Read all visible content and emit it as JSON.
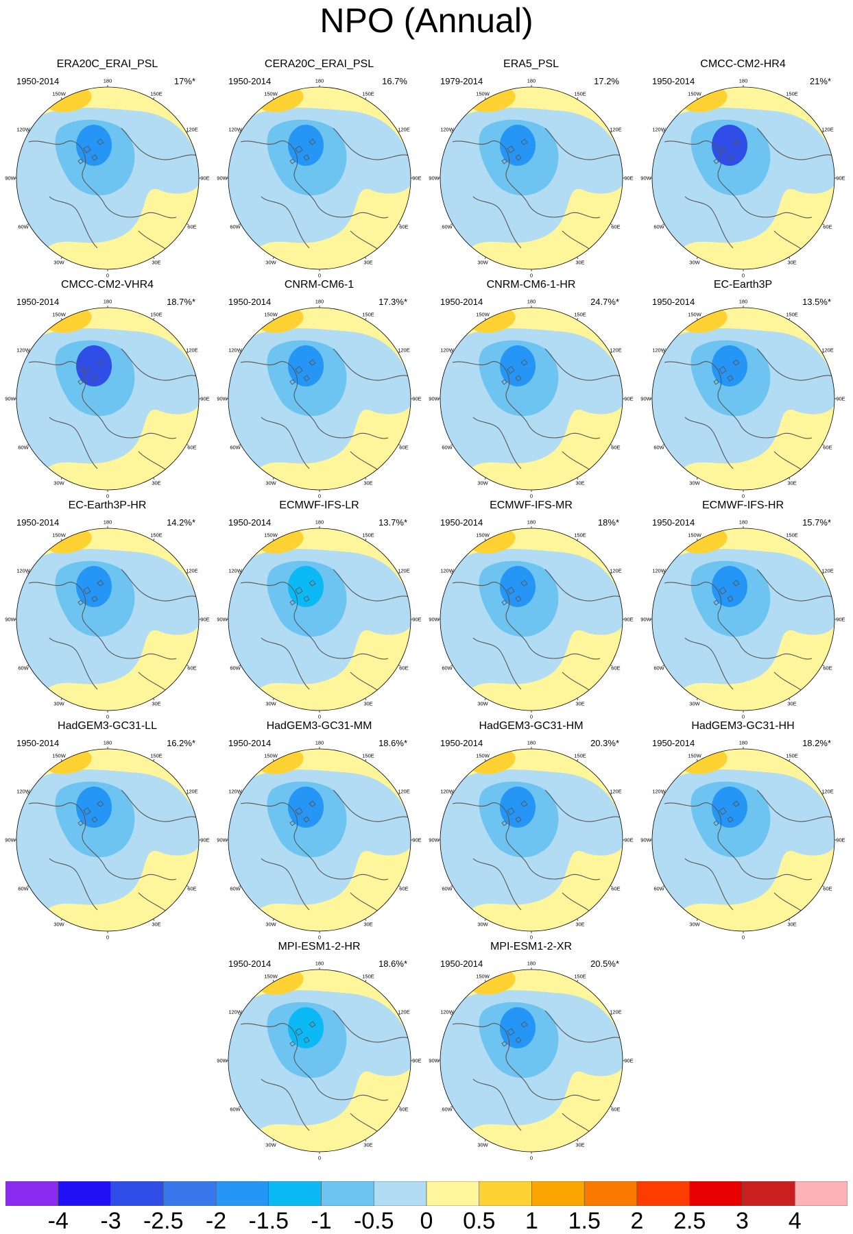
{
  "title": "NPO (Annual)",
  "map_labels": {
    "top": "180",
    "bottom": "0",
    "upper_left": "150W",
    "upper_right": "150E",
    "left_upper": "120W",
    "right_upper": "120E",
    "left_mid": "90W",
    "right_mid": "90E",
    "left_lower": "60W",
    "right_lower": "60E",
    "lower_left": "30W",
    "lower_right": "30E"
  },
  "panels": [
    {
      "name": "ERA20C_ERAI_PSL",
      "period": "1950-2014",
      "variance": "17%*",
      "max_negative": -1.5
    },
    {
      "name": "CERA20C_ERAI_PSL",
      "period": "1950-2014",
      "variance": "16.7%",
      "max_negative": -1.5
    },
    {
      "name": "ERA5_PSL",
      "period": "1979-2014",
      "variance": "17.2%",
      "max_negative": -1.5
    },
    {
      "name": "CMCC-CM2-HR4",
      "period": "1950-2014",
      "variance": "21%*",
      "max_negative": -2.5
    },
    {
      "name": "CMCC-CM2-VHR4",
      "period": "1950-2014",
      "variance": "18.7%*",
      "max_negative": -2.5
    },
    {
      "name": "CNRM-CM6-1",
      "period": "1950-2014",
      "variance": "17.3%*",
      "max_negative": -1.5
    },
    {
      "name": "CNRM-CM6-1-HR",
      "period": "1950-2014",
      "variance": "24.7%*",
      "max_negative": -1.5
    },
    {
      "name": "EC-Earth3P",
      "period": "1950-2014",
      "variance": "13.5%*",
      "max_negative": -1.5
    },
    {
      "name": "EC-Earth3P-HR",
      "period": "1950-2014",
      "variance": "14.2%*",
      "max_negative": -1.5
    },
    {
      "name": "ECMWF-IFS-LR",
      "period": "1950-2014",
      "variance": "13.7%*",
      "max_negative": -1
    },
    {
      "name": "ECMWF-IFS-MR",
      "period": "1950-2014",
      "variance": "18%*",
      "max_negative": -1.5
    },
    {
      "name": "ECMWF-IFS-HR",
      "period": "1950-2014",
      "variance": "15.7%*",
      "max_negative": -1.5
    },
    {
      "name": "HadGEM3-GC31-LL",
      "period": "1950-2014",
      "variance": "16.2%*",
      "max_negative": -1.5
    },
    {
      "name": "HadGEM3-GC31-MM",
      "period": "1950-2014",
      "variance": "18.6%*",
      "max_negative": -1.5
    },
    {
      "name": "HadGEM3-GC31-HM",
      "period": "1950-2014",
      "variance": "20.3%*",
      "max_negative": -1.5
    },
    {
      "name": "HadGEM3-GC31-HH",
      "period": "1950-2014",
      "variance": "18.2%*",
      "max_negative": -1.5
    },
    {
      "name": "MPI-ESM1-2-HR",
      "period": "1950-2014",
      "variance": "18.6%*",
      "max_negative": -1
    },
    {
      "name": "MPI-ESM1-2-XR",
      "period": "1950-2014",
      "variance": "20.5%*",
      "max_negative": -1.5
    }
  ],
  "colorbar": {
    "colors": [
      "#8a2bf0",
      "#1f10f5",
      "#2f4ee8",
      "#3878ec",
      "#2596f5",
      "#0bbaf5",
      "#6ec4f0",
      "#b2dcf3",
      "#fff59a",
      "#fdd232",
      "#fba500",
      "#fa7a00",
      "#fd3c00",
      "#e80000",
      "#c91f1f",
      "#fdb3b6"
    ],
    "labels": [
      "-4",
      "-3",
      "-2.5",
      "-2",
      "-1.5",
      "-1",
      "-0.5",
      "0",
      "0.5",
      "1",
      "1.5",
      "2",
      "2.5",
      "3",
      "4"
    ]
  }
}
